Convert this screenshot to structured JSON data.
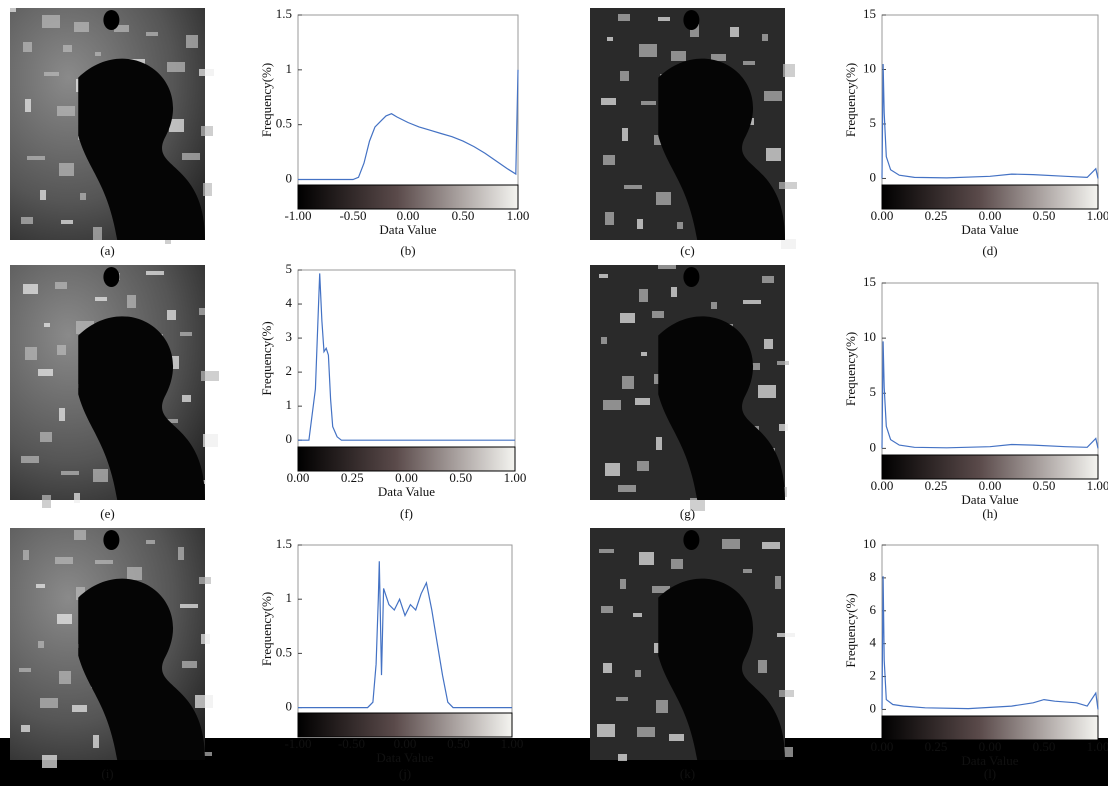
{
  "images": [
    {
      "caption": "(a)"
    },
    {
      "caption": "(c)"
    },
    {
      "caption": "(e)"
    },
    {
      "caption": "(g)"
    },
    {
      "caption": "(i)"
    },
    {
      "caption": "(k)"
    }
  ],
  "chart_data": [
    {
      "type": "line",
      "caption": "(b)",
      "ylabel": "Frequency(%)",
      "xlabel": "Data Value",
      "color": "#4472c4",
      "xlim": [
        -1,
        1
      ],
      "ylim": [
        -0.05,
        1.5
      ],
      "yticks": [
        0,
        0.5,
        1,
        1.5
      ],
      "colorbar_labels": [
        "-1.00",
        "-0.50",
        "0.00",
        "0.50",
        "1.00"
      ],
      "x": [
        -1,
        -0.5,
        -0.45,
        -0.4,
        -0.35,
        -0.3,
        -0.2,
        -0.15,
        -0.1,
        0,
        0.1,
        0.2,
        0.3,
        0.4,
        0.5,
        0.6,
        0.7,
        0.8,
        0.9,
        0.98,
        1.0
      ],
      "values": [
        0,
        0,
        0.02,
        0.15,
        0.35,
        0.48,
        0.58,
        0.6,
        0.57,
        0.52,
        0.48,
        0.45,
        0.42,
        0.39,
        0.35,
        0.3,
        0.24,
        0.17,
        0.1,
        0.05,
        1.0
      ]
    },
    {
      "type": "line",
      "caption": "(d)",
      "ylabel": "Frequency(%)",
      "xlabel": "Data Value",
      "color": "#4472c4",
      "xlim": [
        0,
        1
      ],
      "ylim": [
        -0.6,
        15
      ],
      "yticks": [
        0,
        5,
        10,
        15
      ],
      "colorbar_labels": [
        "0.00",
        "0.25",
        "0.00",
        "0.50",
        "1.00"
      ],
      "x": [
        0,
        0.005,
        0.01,
        0.02,
        0.04,
        0.08,
        0.15,
        0.3,
        0.5,
        0.6,
        0.7,
        0.85,
        0.95,
        0.99,
        1.0
      ],
      "values": [
        0,
        10.5,
        6,
        2,
        0.8,
        0.3,
        0.1,
        0.05,
        0.2,
        0.4,
        0.35,
        0.2,
        0.1,
        0.9,
        0
      ]
    },
    {
      "type": "line",
      "caption": "(f)",
      "ylabel": "Frequency(%)",
      "xlabel": "Data Value",
      "color": "#4472c4",
      "xlim": [
        0,
        1
      ],
      "ylim": [
        -0.2,
        5
      ],
      "yticks": [
        0,
        1,
        2,
        3,
        4,
        5
      ],
      "colorbar_labels": [
        "0.00",
        "0.25",
        "0.00",
        "0.50",
        "1.00"
      ],
      "x": [
        0,
        0.05,
        0.08,
        0.1,
        0.11,
        0.12,
        0.13,
        0.14,
        0.15,
        0.16,
        0.18,
        0.2,
        0.25,
        1.0
      ],
      "values": [
        0,
        0,
        1.5,
        4.9,
        3.5,
        2.6,
        2.7,
        2.5,
        1.2,
        0.4,
        0.1,
        0,
        0,
        0
      ]
    },
    {
      "type": "line",
      "caption": "(h)",
      "ylabel": "Frequency(%)",
      "xlabel": "Data Value",
      "color": "#4472c4",
      "xlim": [
        0,
        1
      ],
      "ylim": [
        -0.6,
        15
      ],
      "yticks": [
        0,
        5,
        10,
        15
      ],
      "colorbar_labels": [
        "0.00",
        "0.25",
        "0.00",
        "0.50",
        "1.00"
      ],
      "x": [
        0,
        0.005,
        0.01,
        0.02,
        0.04,
        0.08,
        0.15,
        0.3,
        0.5,
        0.6,
        0.7,
        0.85,
        0.95,
        0.99,
        1.0
      ],
      "values": [
        0,
        9.7,
        5.5,
        2,
        0.8,
        0.3,
        0.1,
        0.05,
        0.15,
        0.35,
        0.3,
        0.15,
        0.1,
        0.9,
        0
      ]
    },
    {
      "type": "line",
      "caption": "(j)",
      "ylabel": "Frequency(%)",
      "xlabel": "Data Value",
      "color": "#4472c4",
      "xlim": [
        -1,
        1
      ],
      "ylim": [
        -0.05,
        1.5
      ],
      "yticks": [
        0,
        0.5,
        1,
        1.5
      ],
      "colorbar_labels": [
        "-1.00",
        "-0.50",
        "0.00",
        "0.50",
        "1.00"
      ],
      "x": [
        -1,
        -0.35,
        -0.3,
        -0.27,
        -0.25,
        -0.24,
        -0.22,
        -0.2,
        -0.15,
        -0.1,
        -0.05,
        0,
        0.05,
        0.1,
        0.15,
        0.2,
        0.25,
        0.3,
        0.35,
        0.4,
        0.45,
        1
      ],
      "values": [
        0,
        0,
        0.05,
        0.4,
        1.0,
        1.35,
        0.3,
        1.1,
        0.95,
        0.9,
        1.0,
        0.85,
        0.95,
        0.9,
        1.05,
        1.15,
        0.9,
        0.6,
        0.3,
        0.05,
        0,
        0
      ]
    },
    {
      "type": "line",
      "caption": "(l)",
      "ylabel": "Frequency(%)",
      "xlabel": "Data Value",
      "color": "#4472c4",
      "xlim": [
        0,
        1
      ],
      "ylim": [
        -0.4,
        10
      ],
      "yticks": [
        0,
        2,
        4,
        6,
        8,
        10
      ],
      "colorbar_labels": [
        "0.00",
        "0.25",
        "0.00",
        "0.50",
        "1.00"
      ],
      "x": [
        0,
        0.005,
        0.01,
        0.02,
        0.05,
        0.1,
        0.2,
        0.4,
        0.6,
        0.7,
        0.75,
        0.8,
        0.9,
        0.95,
        0.99,
        1.0
      ],
      "values": [
        0,
        8.1,
        3,
        0.6,
        0.3,
        0.2,
        0.1,
        0.05,
        0.2,
        0.4,
        0.6,
        0.5,
        0.4,
        0.2,
        1.0,
        0
      ]
    }
  ]
}
